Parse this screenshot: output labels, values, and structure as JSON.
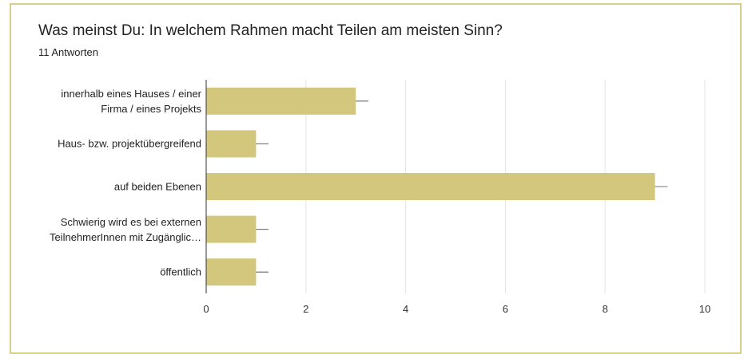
{
  "chart_data": {
    "type": "bar",
    "orientation": "horizontal",
    "title": "Was meinst Du: In welchem Rahmen macht  Teilen am meisten Sinn?",
    "subtitle": "11 Antworten",
    "categories": [
      "innerhalb eines Hauses / einer Firma / eines Projekts",
      "Haus- bzw. projektübergreifend",
      "auf beiden Ebenen",
      "Schwierig wird es bei externen TeilnehmerInnen mit Zugänglic…",
      "öffentlich"
    ],
    "values": [
      3,
      1,
      9,
      1,
      1
    ],
    "errors": [
      0.25,
      0.25,
      0.25,
      0.25,
      0.25
    ],
    "color": "#d2c77c",
    "xlim": [
      0,
      10
    ],
    "xticks": [
      0,
      2,
      4,
      6,
      8,
      10
    ],
    "grid": true
  }
}
